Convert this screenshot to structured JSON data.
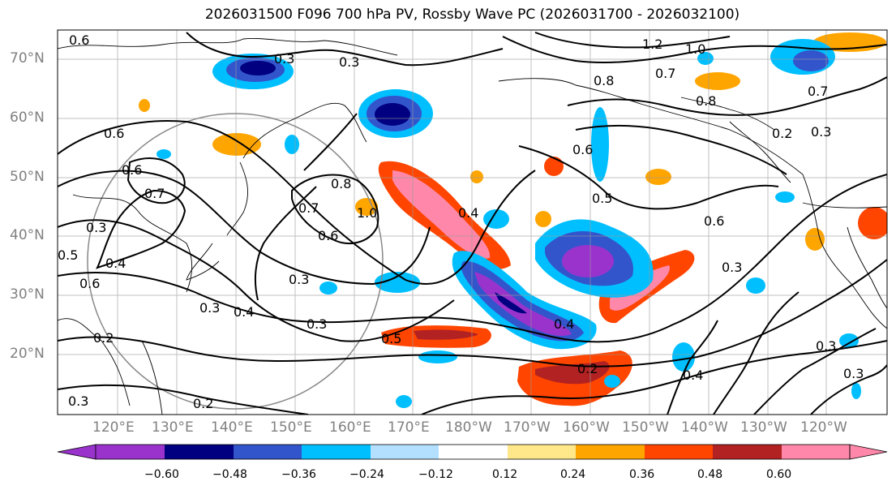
{
  "title": "2026031500 F096 700 hPa PV, Rossby Wave PC (2026031700 - 2026032100)",
  "map": {
    "lat_labels": [
      "70°N",
      "60°N",
      "50°N",
      "40°N",
      "30°N",
      "20°N"
    ],
    "lon_labels": [
      "120°E",
      "130°E",
      "140°E",
      "150°E",
      "160°E",
      "170°E",
      "180°W",
      "170°W",
      "160°W",
      "150°W",
      "140°W",
      "130°W",
      "120°W"
    ],
    "contour_labels": [
      "0.6",
      "0.3",
      "0.3",
      "1.2",
      "1.0",
      "0.7",
      "0.8",
      "0.8",
      "0.7",
      "0.2",
      "0.3",
      "0.6",
      "0.6",
      "0.7",
      "0.8",
      "1.0",
      "0.7",
      "0.6",
      "0.4",
      "0.5",
      "0.6",
      "0.3",
      "0.5",
      "0.4",
      "0.3",
      "0.4",
      "0.6",
      "0.3",
      "0.3",
      "0.3",
      "0.4",
      "0.5",
      "0.2",
      "0.4",
      "0.3",
      "0.3",
      "0.2",
      "0.3",
      "0.2",
      "0.6"
    ]
  },
  "colorbar": {
    "colors": [
      "#9933cc",
      "#000080",
      "#3355cc",
      "#00bfff",
      "#b3e0ff",
      "#ffffff",
      "#ffe88a",
      "#ffa500",
      "#ff4500",
      "#b22222",
      "#ff88aa"
    ],
    "tick_labels": [
      "−0.60",
      "−0.48",
      "−0.36",
      "−0.24",
      "−0.12",
      "0.12",
      "0.24",
      "0.36",
      "0.48",
      "0.60"
    ]
  }
}
